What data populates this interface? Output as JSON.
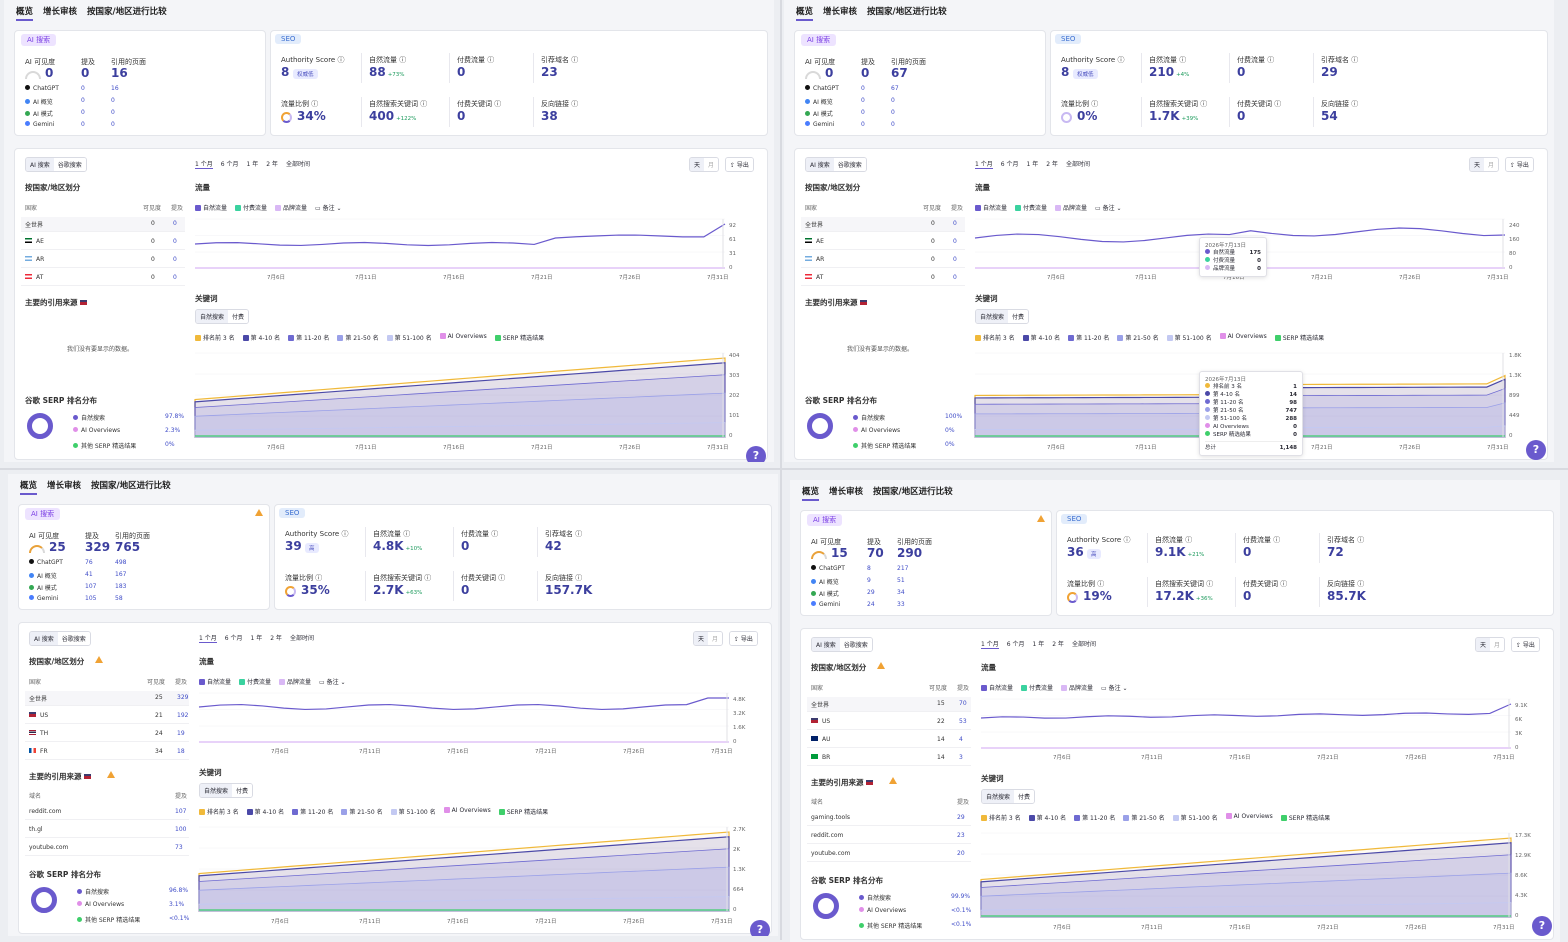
{
  "tabs": [
    "概览",
    "增长审核",
    "按国家/地区进行比较"
  ],
  "labels": {
    "ai_search": "AI 搜索",
    "seo": "SEO",
    "ai_visibility": "AI 可见度",
    "mentions": "提及",
    "cited_pages": "引用的页面",
    "chatgpt": "ChatGPT",
    "ai_overview": "AI 概览",
    "ai_mode": "AI 模式",
    "gemini": "Gemini",
    "authority": "Authority Score",
    "organic": "自然流量",
    "paid": "付费流量",
    "ref_domains": "引荐域名",
    "traffic_share": "流量比例",
    "organic_kw": "自然搜索关键词",
    "paid_kw": "付费关键词",
    "backlinks": "反向链接",
    "toggle_ai": "AI 搜索",
    "toggle_google": "谷歌搜索",
    "periods": [
      "1 个月",
      "6 个月",
      "1 年",
      "2 年",
      "全部时间"
    ],
    "day": "天",
    "month": "月",
    "export": "导出",
    "by_country": "按国家/地区划分",
    "country_col": "国家",
    "vis_col": "可见度",
    "ment_col": "提及",
    "traffic": "流量",
    "leg_org": "自然流量",
    "leg_paid": "付费流量",
    "leg_brand": "品牌流量",
    "notes": "备注",
    "keywords": "关键词",
    "kw_org": "自然搜索",
    "kw_paid": "付费",
    "rank_legend": [
      "排名前 3 名",
      "第 4-10 名",
      "第 11-20 名",
      "第 21-50 名",
      "第 51-100 名",
      "AI Overviews",
      "SERP 精选结果"
    ],
    "top_sources": "主要的引用来源",
    "domain_col": "域名",
    "no_data": "我们没有要显示的数据。",
    "serp_dist": "谷歌 SERP 排名分布",
    "serp_org": "自然搜索",
    "serp_aio": "AI Overviews",
    "serp_feat": "其他 SERP 精选结果",
    "dates": [
      "7月6日",
      "7月11日",
      "7月16日",
      "7月21日",
      "7月26日",
      "7月31日"
    ],
    "help": "?"
  },
  "colors": {
    "accent": "#6a5acd",
    "organic": "#6a5acd",
    "paid": "#3ad29f",
    "brand": "#d9b8f5",
    "top3": "#f0b93a",
    "r4": "#4b49a8",
    "r11": "#6e6ad1",
    "r21": "#9aa0e8",
    "r51": "#c3c9f2",
    "aio": "#e08fe8",
    "serp": "#3fcf6b"
  },
  "panes": [
    {
      "ai": {
        "visibility": "0",
        "mentions": "0",
        "cited": "16",
        "rows": [
          [
            "0",
            "16"
          ],
          [
            "0",
            "0"
          ],
          [
            "0",
            "0"
          ],
          [
            "0",
            "0"
          ]
        ]
      },
      "seo": {
        "authority": "8",
        "authority_pill": "权威低",
        "organic": "88",
        "organic_delta": "+73%",
        "paid": "0",
        "ref_domains": "23",
        "share": "34%",
        "organic_kw": "400",
        "organic_kw_delta": "+122%",
        "paid_kw": "0",
        "backlinks": "38"
      },
      "countries": [
        {
          "name": "全世界",
          "vis": "0",
          "ment": "0"
        },
        {
          "name": "AE",
          "vis": "0",
          "ment": "0"
        },
        {
          "name": "AR",
          "vis": "0",
          "ment": "0"
        },
        {
          "name": "AT",
          "vis": "0",
          "ment": "0"
        }
      ],
      "sources": [],
      "serp": {
        "org": "97.8%",
        "aio": "2.3%",
        "feat": "0%"
      },
      "traffic_axis": [
        "92",
        "61",
        "31",
        "0"
      ],
      "kw_axis": [
        "404",
        "303",
        "202",
        "101",
        "0"
      ]
    },
    {
      "ai": {
        "visibility": "0",
        "mentions": "0",
        "cited": "67",
        "rows": [
          [
            "0",
            "67"
          ],
          [
            "0",
            "0"
          ],
          [
            "0",
            "0"
          ],
          [
            "0",
            "0"
          ]
        ]
      },
      "seo": {
        "authority": "8",
        "authority_pill": "权威低",
        "organic": "210",
        "organic_delta": "+4%",
        "paid": "0",
        "ref_domains": "29",
        "share": "0%",
        "organic_kw": "1.7K",
        "organic_kw_delta": "+39%",
        "paid_kw": "0",
        "backlinks": "54"
      },
      "countries": [
        {
          "name": "全世界",
          "vis": "0",
          "ment": "0"
        },
        {
          "name": "AE",
          "vis": "0",
          "ment": "0"
        },
        {
          "name": "AR",
          "vis": "0",
          "ment": "0"
        },
        {
          "name": "AT",
          "vis": "0",
          "ment": "0"
        }
      ],
      "sources": [],
      "serp": {
        "org": "100%",
        "aio": "0%",
        "feat": "0%"
      },
      "traffic_axis": [
        "240",
        "160",
        "80",
        "0"
      ],
      "kw_axis": [
        "1.8K",
        "1.3K",
        "899",
        "449",
        "0"
      ],
      "tooltip1": {
        "date": "2026年7月13日",
        "rows": [
          [
            "自然流量",
            "175"
          ],
          [
            "付费流量",
            "0"
          ],
          [
            "品牌流量",
            "0"
          ]
        ]
      },
      "tooltip2": {
        "date": "2026年7月13日",
        "rows": [
          [
            "排名前 3 名",
            "1"
          ],
          [
            "第 4-10 名",
            "14"
          ],
          [
            "第 11-20 名",
            "98"
          ],
          [
            "第 21-50 名",
            "747"
          ],
          [
            "第 51-100 名",
            "288"
          ],
          [
            "AI Overviews",
            "0"
          ],
          [
            "SERP 精选结果",
            "0"
          ]
        ],
        "total_label": "总计",
        "total": "1,148"
      }
    },
    {
      "ai": {
        "visibility": "25",
        "mentions": "329",
        "cited": "765",
        "rows": [
          [
            "76",
            "498"
          ],
          [
            "41",
            "167"
          ],
          [
            "107",
            "183"
          ],
          [
            "105",
            "58"
          ]
        ]
      },
      "seo": {
        "authority": "39",
        "authority_pill": "高",
        "organic": "4.8K",
        "organic_delta": "+10%",
        "paid": "0",
        "ref_domains": "42",
        "share": "35%",
        "organic_kw": "2.7K",
        "organic_kw_delta": "+63%",
        "paid_kw": "0",
        "backlinks": "157.7K"
      },
      "countries": [
        {
          "name": "全世界",
          "vis": "25",
          "ment": "329"
        },
        {
          "name": "US",
          "vis": "21",
          "ment": "192"
        },
        {
          "name": "TH",
          "vis": "24",
          "ment": "19"
        },
        {
          "name": "FR",
          "vis": "34",
          "ment": "18"
        }
      ],
      "sources": [
        {
          "domain": "reddit.com",
          "ment": "107"
        },
        {
          "domain": "th.gl",
          "ment": "100"
        },
        {
          "domain": "youtube.com",
          "ment": "73"
        }
      ],
      "serp": {
        "org": "96.8%",
        "aio": "3.1%",
        "feat": "<0.1%"
      },
      "traffic_axis": [
        "4.8K",
        "3.2K",
        "1.6K",
        "0"
      ],
      "kw_axis": [
        "2.7K",
        "2K",
        "1.3K",
        "664",
        "0"
      ]
    },
    {
      "ai": {
        "visibility": "15",
        "mentions": "70",
        "cited": "290",
        "rows": [
          [
            "8",
            "217"
          ],
          [
            "9",
            "51"
          ],
          [
            "29",
            "34"
          ],
          [
            "24",
            "33"
          ]
        ]
      },
      "seo": {
        "authority": "36",
        "authority_pill": "高",
        "organic": "9.1K",
        "organic_delta": "+21%",
        "paid": "0",
        "ref_domains": "72",
        "share": "19%",
        "organic_kw": "17.2K",
        "organic_kw_delta": "+36%",
        "paid_kw": "0",
        "backlinks": "85.7K"
      },
      "countries": [
        {
          "name": "全世界",
          "vis": "15",
          "ment": "70"
        },
        {
          "name": "US",
          "vis": "22",
          "ment": "53"
        },
        {
          "name": "AU",
          "vis": "14",
          "ment": "4"
        },
        {
          "name": "BR",
          "vis": "14",
          "ment": "3"
        }
      ],
      "sources": [
        {
          "domain": "gaming.tools",
          "ment": "29"
        },
        {
          "domain": "reddit.com",
          "ment": "23"
        },
        {
          "domain": "youtube.com",
          "ment": "20"
        }
      ],
      "serp": {
        "org": "99.9%",
        "aio": "<0.1%",
        "feat": "<0.1%"
      },
      "traffic_axis": [
        "9.1K",
        "6K",
        "3K",
        "0"
      ],
      "kw_axis": [
        "17.3K",
        "12.9K",
        "8.6K",
        "4.3K",
        "0"
      ]
    }
  ]
}
